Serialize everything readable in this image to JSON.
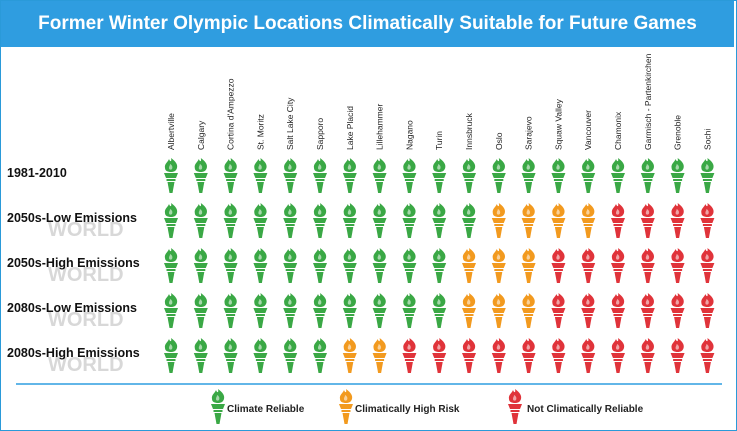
{
  "title": "Former Winter Olympic Locations Climatically Suitable for Future Games",
  "colors": {
    "reliable": "#3aa845",
    "high_risk": "#f29a1f",
    "not_reliable": "#e0333a",
    "accent": "#2f9de0"
  },
  "watermark": "WORLD",
  "legend": [
    {
      "key": "R",
      "label": "Climate Reliable"
    },
    {
      "key": "H",
      "label": "Climatically High Risk"
    },
    {
      "key": "N",
      "label": "Not Climatically  Reliable"
    }
  ],
  "chart_data": {
    "type": "table",
    "title": "Former Winter Olympic Locations Climatically Suitable for Future Games",
    "columns": [
      "Albertville",
      "Calgary",
      "Cortina d'Ampezzo",
      "St. Moritz",
      "Salt Lake City",
      "Sapporo",
      "Lake Placid",
      "Lillehammer",
      "Nagano",
      "Turin",
      "Innsbruck",
      "Oslo",
      "Sarajevo",
      "Squaw Valley",
      "Vancouver",
      "Chamonix",
      "Garmisch - Partenkirchen",
      "Grenoble",
      "Sochi"
    ],
    "rows": [
      {
        "label": "1981-2010",
        "values": [
          "R",
          "R",
          "R",
          "R",
          "R",
          "R",
          "R",
          "R",
          "R",
          "R",
          "R",
          "R",
          "R",
          "R",
          "R",
          "R",
          "R",
          "R",
          "R"
        ]
      },
      {
        "label": "2050s-Low Emissions",
        "values": [
          "R",
          "R",
          "R",
          "R",
          "R",
          "R",
          "R",
          "R",
          "R",
          "R",
          "R",
          "H",
          "H",
          "H",
          "H",
          "N",
          "N",
          "N",
          "N"
        ]
      },
      {
        "label": "2050s-High Emissions",
        "values": [
          "R",
          "R",
          "R",
          "R",
          "R",
          "R",
          "R",
          "R",
          "R",
          "R",
          "H",
          "H",
          "H",
          "N",
          "N",
          "N",
          "N",
          "N",
          "N"
        ]
      },
      {
        "label": "2080s-Low Emissions",
        "values": [
          "R",
          "R",
          "R",
          "R",
          "R",
          "R",
          "R",
          "R",
          "R",
          "R",
          "H",
          "H",
          "H",
          "N",
          "N",
          "N",
          "N",
          "N",
          "N"
        ]
      },
      {
        "label": "2080s-High Emissions",
        "values": [
          "R",
          "R",
          "R",
          "R",
          "R",
          "R",
          "H",
          "H",
          "N",
          "N",
          "N",
          "N",
          "N",
          "N",
          "N",
          "N",
          "N",
          "N",
          "N"
        ]
      }
    ],
    "legend": {
      "R": "Climate Reliable",
      "H": "Climatically High Risk",
      "N": "Not Climatically  Reliable"
    }
  }
}
